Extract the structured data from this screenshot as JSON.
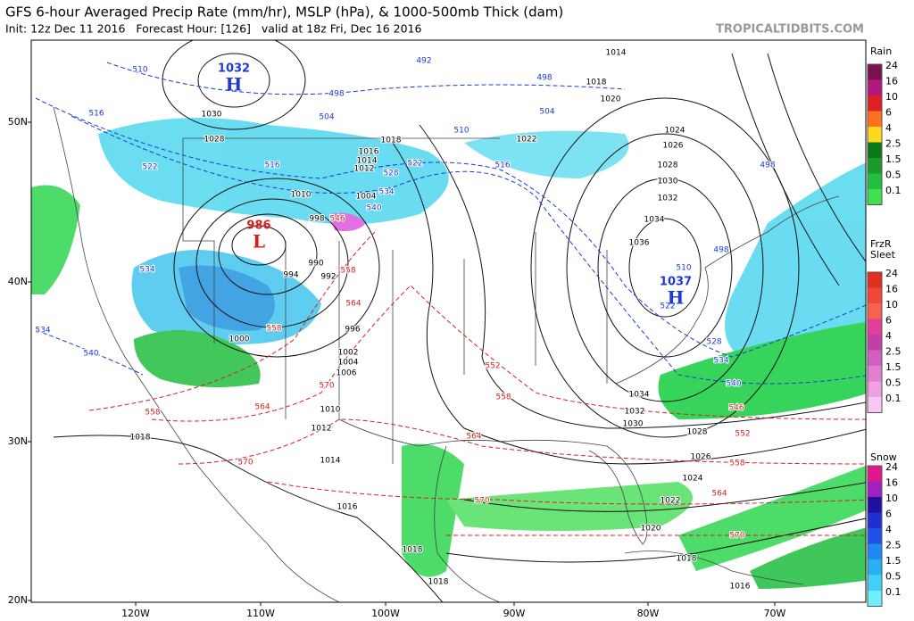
{
  "header": {
    "title": "GFS 6-hour Averaged Precip Rate (mm/hr), MSLP (hPa), & 1000-500mb Thick (dam)",
    "subtitle": "Init: 12z Dec 11 2016   Forecast Hour: [126]   valid at 18z Fri, Dec 16 2016",
    "brand": "TROPICALTIDBITS.COM"
  },
  "map": {
    "lat_labels": [
      "50N",
      "40N",
      "30N",
      "20N"
    ],
    "lon_labels": [
      "120W",
      "110W",
      "100W",
      "90W",
      "80W",
      "70W"
    ],
    "pressure_centers": [
      {
        "value": "1032",
        "type": "H",
        "color": "#1a3bd6"
      },
      {
        "value": "986",
        "type": "L",
        "color": "#d62020"
      },
      {
        "value": "1037",
        "type": "H",
        "color": "#1a3bd6"
      }
    ],
    "isobar_labels": [
      "1014",
      "1018",
      "1020",
      "1024",
      "1026",
      "1028",
      "1030",
      "1032",
      "1034",
      "1036",
      "1030",
      "1028",
      "1018",
      "1016",
      "1014",
      "1012",
      "1010",
      "1004",
      "998",
      "994",
      "990",
      "992",
      "996",
      "1002",
      "1004",
      "1006",
      "1010",
      "1012",
      "1014",
      "1016",
      "1018",
      "1018",
      "1018",
      "1000",
      "1022",
      "1032",
      "1030",
      "1028",
      "1026",
      "1024",
      "1022",
      "1020",
      "1018",
      "1016",
      "1034"
    ],
    "thickness_labels": [
      {
        "label": "492",
        "color": "#1a3bd6"
      },
      {
        "label": "498",
        "color": "#1a3bd6"
      },
      {
        "label": "498",
        "color": "#1a3bd6"
      },
      {
        "label": "504",
        "color": "#1a3bd6"
      },
      {
        "label": "504",
        "color": "#1a3bd6"
      },
      {
        "label": "510",
        "color": "#1a3bd6"
      },
      {
        "label": "510",
        "color": "#1a3bd6"
      },
      {
        "label": "510",
        "color": "#1a3bd6"
      },
      {
        "label": "516",
        "color": "#1a3bd6"
      },
      {
        "label": "516",
        "color": "#1a3bd6"
      },
      {
        "label": "516",
        "color": "#1a3bd6"
      },
      {
        "label": "522",
        "color": "#1a3bd6"
      },
      {
        "label": "522",
        "color": "#1a3bd6"
      },
      {
        "label": "522",
        "color": "#1a3bd6"
      },
      {
        "label": "528",
        "color": "#1a3bd6"
      },
      {
        "label": "534",
        "color": "#1a3bd6"
      },
      {
        "label": "540",
        "color": "#1a3bd6"
      },
      {
        "label": "534",
        "color": "#1a3bd6"
      },
      {
        "label": "534",
        "color": "#1a3bd6"
      },
      {
        "label": "540",
        "color": "#1a3bd6"
      },
      {
        "label": "528",
        "color": "#1a3bd6"
      },
      {
        "label": "534",
        "color": "#1a3bd6"
      },
      {
        "label": "540",
        "color": "#1a3bd6"
      },
      {
        "label": "498",
        "color": "#1a3bd6"
      },
      {
        "label": "498",
        "color": "#1a3bd6"
      },
      {
        "label": "546",
        "color": "#d62020"
      },
      {
        "label": "558",
        "color": "#d62020"
      },
      {
        "label": "564",
        "color": "#d62020"
      },
      {
        "label": "552",
        "color": "#d62020"
      },
      {
        "label": "558",
        "color": "#d62020"
      },
      {
        "label": "564",
        "color": "#d62020"
      },
      {
        "label": "570",
        "color": "#d62020"
      },
      {
        "label": "570",
        "color": "#d62020"
      },
      {
        "label": "564",
        "color": "#d62020"
      },
      {
        "label": "558",
        "color": "#d62020"
      },
      {
        "label": "570",
        "color": "#d62020"
      },
      {
        "label": "546",
        "color": "#d62020"
      },
      {
        "label": "552",
        "color": "#d62020"
      },
      {
        "label": "558",
        "color": "#d62020"
      },
      {
        "label": "564",
        "color": "#d62020"
      },
      {
        "label": "570",
        "color": "#d62020"
      },
      {
        "label": "558",
        "color": "#d62020"
      }
    ]
  },
  "legends": [
    {
      "title": "Rain",
      "labels": [
        "24",
        "16",
        "10",
        "6",
        "4",
        "2.5",
        "1.5",
        "0.5",
        "0.1"
      ]
    },
    {
      "title": "FrzR",
      "subtitle": "Sleet",
      "labels": [
        "24",
        "16",
        "10",
        "6",
        "4",
        "2.5",
        "1.5",
        "0.5",
        "0.1"
      ]
    },
    {
      "title": "Snow",
      "labels": [
        "24",
        "16",
        "10",
        "6",
        "4",
        "2.5",
        "1.5",
        "0.5",
        "0.1"
      ]
    }
  ]
}
